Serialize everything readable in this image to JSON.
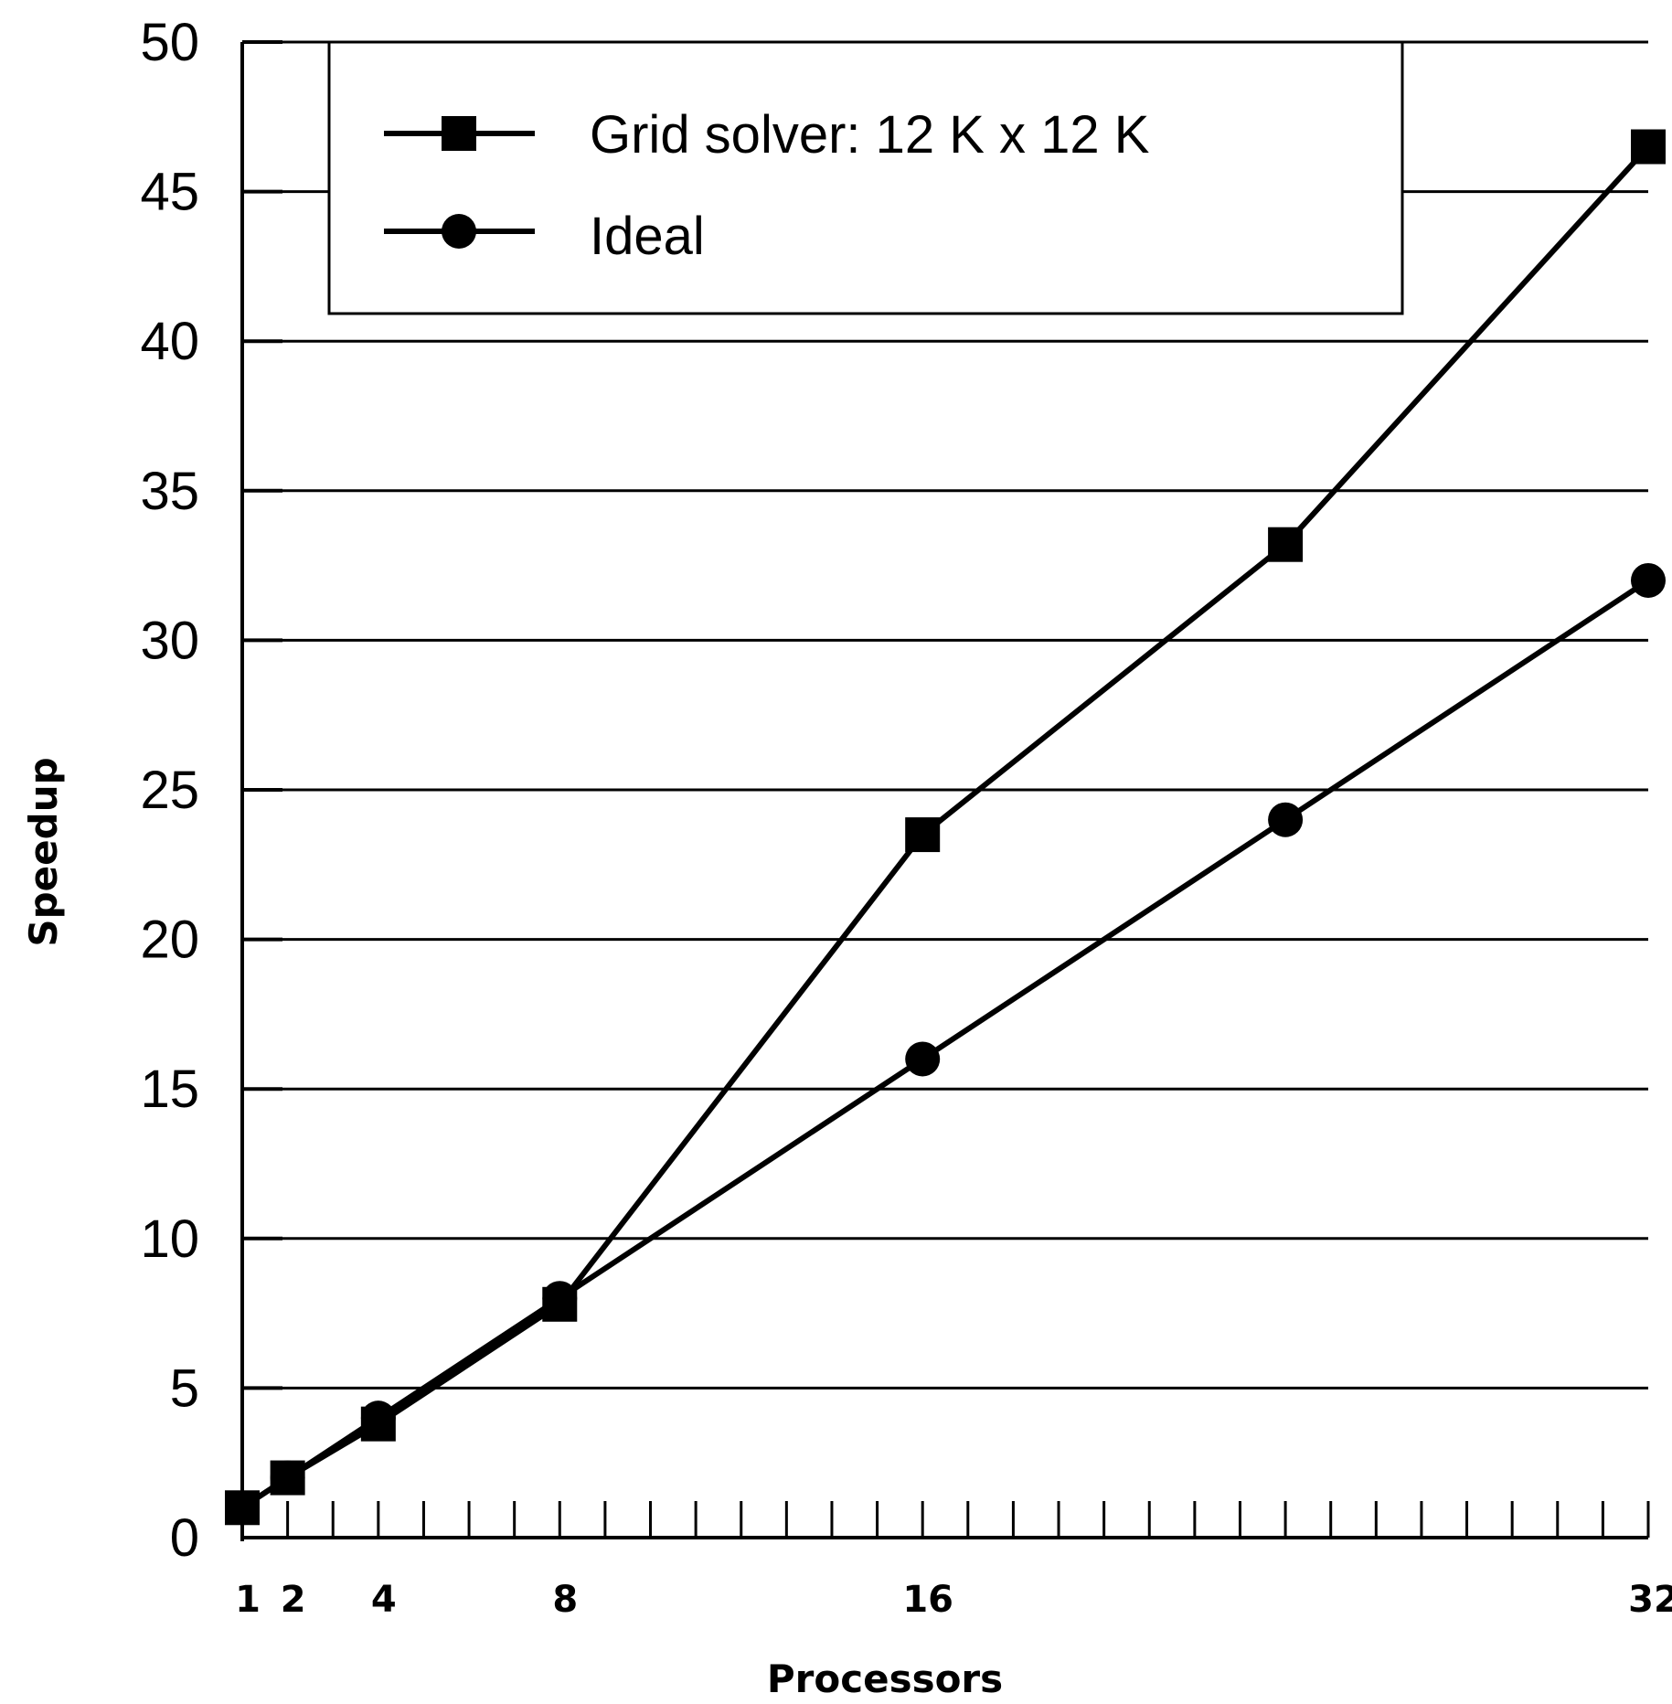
{
  "chart_data": {
    "type": "line",
    "title": "",
    "xlabel": "Processors",
    "ylabel": "Speedup",
    "ylim": [
      0,
      50
    ],
    "xlim": [
      1,
      32
    ],
    "yticks": [
      "0",
      "5",
      "10",
      "15",
      "20",
      "25",
      "30",
      "35",
      "40",
      "45",
      "50"
    ],
    "xticks": [
      {
        "value": 1,
        "label": "1"
      },
      {
        "value": 2,
        "label": "2"
      },
      {
        "value": 4,
        "label": "4"
      },
      {
        "value": 8,
        "label": "8"
      },
      {
        "value": 16,
        "label": "16"
      },
      {
        "value": 32,
        "label": "32"
      }
    ],
    "grid": "horizontal",
    "legend_position": "top",
    "series": [
      {
        "name": "Grid solver: 12 K x 12 K",
        "marker": "square",
        "x": [
          1,
          2,
          4,
          8,
          16,
          24,
          32
        ],
        "values": [
          1,
          2,
          3.8,
          7.8,
          23.5,
          33.2,
          46.5
        ]
      },
      {
        "name": "Ideal",
        "marker": "circle",
        "x": [
          1,
          2,
          4,
          8,
          16,
          24,
          32
        ],
        "values": [
          1,
          2,
          4,
          8,
          16,
          24,
          32
        ]
      }
    ]
  }
}
